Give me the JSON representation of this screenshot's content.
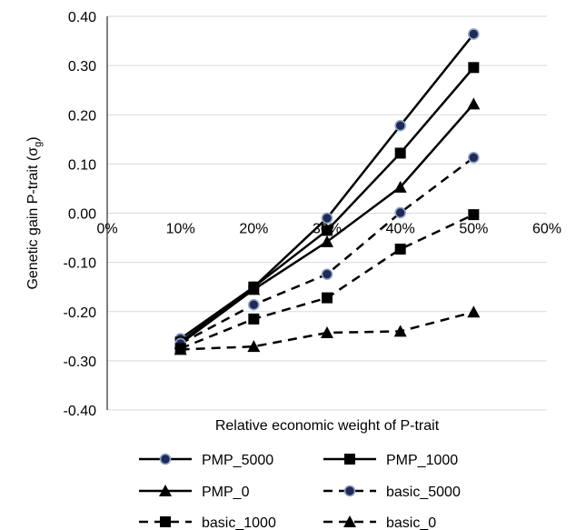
{
  "chart_data": {
    "type": "line",
    "title": "",
    "xlabel": "Relative economic weight of P-trait",
    "ylabel_main": "Genetic gain P-trait (",
    "ylabel_symbol": "σ",
    "ylabel_sub": "g",
    "ylabel_end": ")",
    "xlim": [
      0,
      60
    ],
    "ylim": [
      -0.4,
      0.4
    ],
    "x_tick_labels": [
      "0%",
      "10%",
      "20%",
      "30%",
      "40%",
      "50%",
      "60%"
    ],
    "x_tick_values": [
      0,
      10,
      20,
      30,
      40,
      50,
      60
    ],
    "y_tick_labels": [
      "0.40",
      "0.30",
      "0.20",
      "0.10",
      "0.00",
      "-0.10",
      "-0.20",
      "-0.30",
      "-0.40"
    ],
    "y_tick_values": [
      0.4,
      0.3,
      0.2,
      0.1,
      0.0,
      -0.1,
      -0.2,
      -0.3,
      -0.4
    ],
    "x": [
      10,
      20,
      30,
      40,
      50
    ],
    "grid": "horizontal",
    "legend_position": "bottom",
    "series": [
      {
        "name": "PMP_5000",
        "marker": "circle",
        "dash": "solid",
        "values": [
          -0.255,
          -0.15,
          -0.01,
          0.178,
          0.364
        ]
      },
      {
        "name": "PMP_1000",
        "marker": "square",
        "dash": "solid",
        "values": [
          -0.262,
          -0.15,
          -0.035,
          0.122,
          0.296
        ]
      },
      {
        "name": "PMP_0",
        "marker": "triangle",
        "dash": "solid",
        "values": [
          -0.265,
          -0.155,
          -0.058,
          0.053,
          0.222
        ]
      },
      {
        "name": "basic_5000",
        "marker": "circle",
        "dash": "dashed",
        "values": [
          -0.265,
          -0.186,
          -0.124,
          0.001,
          0.113
        ]
      },
      {
        "name": "basic_1000",
        "marker": "square",
        "dash": "dashed",
        "values": [
          -0.275,
          -0.215,
          -0.172,
          -0.073,
          -0.003
        ]
      },
      {
        "name": "basic_0",
        "marker": "triangle",
        "dash": "dashed",
        "values": [
          -0.277,
          -0.271,
          -0.243,
          -0.24,
          -0.201
        ]
      }
    ],
    "colors": {
      "line": "#000000",
      "circle_fill": "#1f2a5a",
      "circle_stroke": "#8fa6c8",
      "grid": "#d9d9d9"
    }
  }
}
